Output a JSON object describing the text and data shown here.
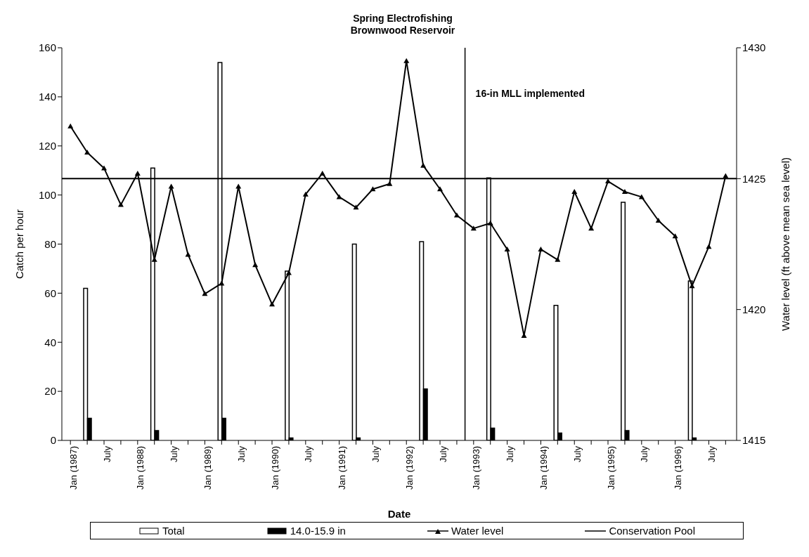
{
  "chart_data": {
    "type": "bar",
    "title": "Spring Electrofishing\nBrownwood Reservoir",
    "xlabel": "Date",
    "ylabel": "Catch per hour",
    "y2label": "Water level (ft above mean sea level)",
    "x": [
      "1987-04",
      "1988-04",
      "1989-04",
      "1990-04",
      "1991-04",
      "1992-04",
      "1993-04",
      "1994-04",
      "1995-04",
      "1996-04"
    ],
    "series": [
      {
        "name": "Total",
        "color": "#ffffff",
        "values": [
          62,
          111,
          154,
          69,
          80,
          81,
          107,
          55,
          97,
          65
        ]
      },
      {
        "name": "14.0-15.9 in",
        "color": "#000000",
        "values": [
          9,
          4,
          9,
          1,
          1,
          21,
          5,
          3,
          4,
          1
        ]
      },
      {
        "name": "Water level",
        "type": "line",
        "axis": "y2",
        "color": "#000000",
        "marker": "triangle",
        "x": [
          "1987-01",
          "1987-04",
          "1987-07",
          "1987-10",
          "1988-01",
          "1988-04",
          "1988-07",
          "1988-10",
          "1989-01",
          "1989-04",
          "1989-07",
          "1989-10",
          "1990-01",
          "1990-04",
          "1990-07",
          "1990-10",
          "1991-01",
          "1991-04",
          "1991-07",
          "1991-10",
          "1992-01",
          "1992-04",
          "1992-07",
          "1992-10",
          "1993-01",
          "1993-04",
          "1993-07",
          "1993-10",
          "1994-01",
          "1994-04",
          "1994-07",
          "1994-10",
          "1995-01",
          "1995-04",
          "1995-07",
          "1995-10",
          "1996-01",
          "1996-04",
          "1996-07",
          "1996-10"
        ],
        "values": [
          1427.0,
          1426.0,
          1425.4,
          1424.0,
          1425.2,
          1421.9,
          1424.7,
          1422.1,
          1420.6,
          1421.0,
          1424.7,
          1421.7,
          1420.2,
          1421.4,
          1424.4,
          1425.2,
          1424.3,
          1423.9,
          1424.6,
          1424.8,
          1429.5,
          1425.5,
          1424.6,
          1423.6,
          1423.1,
          1423.3,
          1422.3,
          1419.0,
          1422.3,
          1421.9,
          1424.5,
          1423.1,
          1424.9,
          1424.5,
          1424.3,
          1423.4,
          1422.8,
          1420.9,
          1422.4,
          1425.1
        ]
      },
      {
        "name": "Conservation Pool",
        "type": "line",
        "axis": "y2",
        "color": "#000000",
        "marker": "none",
        "x": [
          "1986-11-15",
          "1996-11-30"
        ],
        "values": [
          1425.0,
          1425.0
        ]
      }
    ],
    "ref_lines": [
      {
        "axis": "x",
        "value": "1992-11-15",
        "label": "16-in MLL implemented",
        "color": "#000000"
      }
    ],
    "xlim": [
      "1986-11-15",
      "1996-11-30"
    ],
    "xticks": [
      {
        "value": "1987-01",
        "label": "Jan (1987)"
      },
      {
        "value": "1987-04",
        "label": null
      },
      {
        "value": "1987-07",
        "label": "July"
      },
      {
        "value": "1987-10",
        "label": null
      },
      {
        "value": "1988-01",
        "label": "Jan (1988)"
      },
      {
        "value": "1988-04",
        "label": null
      },
      {
        "value": "1988-07",
        "label": "July"
      },
      {
        "value": "1988-10",
        "label": null
      },
      {
        "value": "1989-01",
        "label": "Jan (1989)"
      },
      {
        "value": "1989-04",
        "label": null
      },
      {
        "value": "1989-07",
        "label": "July"
      },
      {
        "value": "1989-10",
        "label": null
      },
      {
        "value": "1990-01",
        "label": "Jan (1990)"
      },
      {
        "value": "1990-04",
        "label": null
      },
      {
        "value": "1990-07",
        "label": "July"
      },
      {
        "value": "1990-10",
        "label": null
      },
      {
        "value": "1991-01",
        "label": "Jan (1991)"
      },
      {
        "value": "1991-04",
        "label": null
      },
      {
        "value": "1991-07",
        "label": "July"
      },
      {
        "value": "1991-10",
        "label": null
      },
      {
        "value": "1992-01",
        "label": "Jan (1992)"
      },
      {
        "value": "1992-04",
        "label": null
      },
      {
        "value": "1992-07",
        "label": "July"
      },
      {
        "value": "1992-10",
        "label": null
      },
      {
        "value": "1993-01",
        "label": "Jan (1993)"
      },
      {
        "value": "1993-04",
        "label": null
      },
      {
        "value": "1993-07",
        "label": "July"
      },
      {
        "value": "1993-10",
        "label": null
      },
      {
        "value": "1994-01",
        "label": "Jan (1994)"
      },
      {
        "value": "1994-04",
        "label": null
      },
      {
        "value": "1994-07",
        "label": "July"
      },
      {
        "value": "1994-10",
        "label": null
      },
      {
        "value": "1995-01",
        "label": "Jan (1995)"
      },
      {
        "value": "1995-04",
        "label": null
      },
      {
        "value": "1995-07",
        "label": "July"
      },
      {
        "value": "1995-10",
        "label": null
      },
      {
        "value": "1996-01",
        "label": "Jan (1996)"
      },
      {
        "value": "1996-04",
        "label": null
      },
      {
        "value": "1996-07",
        "label": "July"
      },
      {
        "value": "1996-10",
        "label": null
      }
    ],
    "ylim": [
      0,
      160
    ],
    "yticks": [
      0,
      20,
      40,
      60,
      80,
      100,
      120,
      140,
      160
    ],
    "y2lim": [
      1415,
      1430
    ],
    "y2ticks": [
      1415,
      1420,
      1425,
      1430
    ],
    "grid": false,
    "legend": "bottom"
  }
}
